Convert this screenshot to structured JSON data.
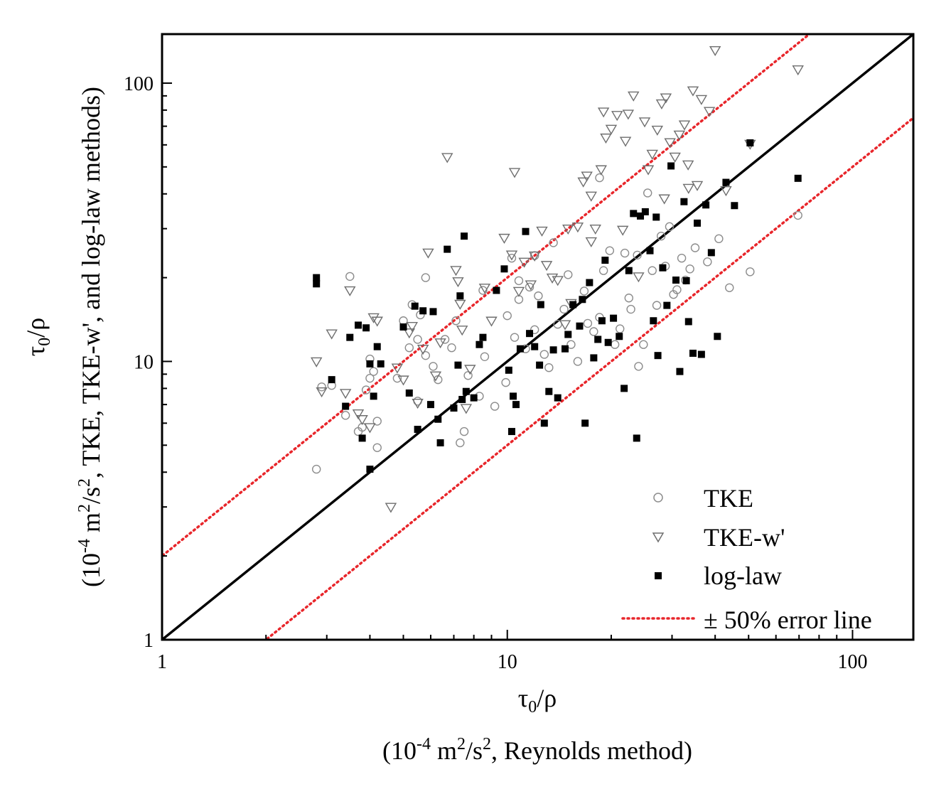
{
  "chart_data": {
    "type": "scatter",
    "scale": "log-log",
    "xlim": [
      1,
      150
    ],
    "ylim": [
      1,
      150
    ],
    "x_ticks": [
      {
        "value": 1,
        "label": "1"
      },
      {
        "value": 10,
        "label": "10"
      },
      {
        "value": 100,
        "label": "100"
      }
    ],
    "y_ticks": [
      {
        "value": 1,
        "label": "1"
      },
      {
        "value": 10,
        "label": "10"
      },
      {
        "value": 100,
        "label": "100"
      }
    ],
    "xlabel": {
      "main": "τ0/ρ",
      "main_symbol": "τ",
      "main_sub": "0",
      "main_rest": "/ρ",
      "units_prefix": "(10",
      "units_exp1": "-4",
      "units_mid": " m",
      "units_exp2": "2",
      "units_rest": "/s",
      "units_exp3": "2",
      "units_tail": ", Reynolds method)"
    },
    "ylabel": {
      "main_symbol": "τ",
      "main_sub": "0",
      "main_rest": "/ρ",
      "units_prefix": "(10",
      "units_exp1": "-4",
      "units_mid": " m",
      "units_exp2": "2",
      "units_rest": "/s",
      "units_exp3": "2",
      "units_tail": ", TKE, TKE-w', and log-law methods)"
    },
    "reference_lines": [
      {
        "name": "1:1 line",
        "slope_factor": 1.0,
        "color": "#000000",
        "style": "solid"
      },
      {
        "name": "± 50% error line",
        "slope_factor": 2.0,
        "color": "#e8262b",
        "style": "dotted"
      },
      {
        "name": "± 50% error line",
        "slope_factor": 0.5,
        "color": "#e8262b",
        "style": "dotted"
      }
    ],
    "legend": {
      "position": "bottom-right",
      "entries": [
        {
          "label": "TKE",
          "marker": "open-circle"
        },
        {
          "label": "TKE-w'",
          "marker": "open-triangle-down"
        },
        {
          "label": "log-law",
          "marker": "filled-square"
        },
        {
          "label": "± 50% error line",
          "marker": "red-dotted-line"
        }
      ]
    },
    "colors": {
      "tke": "#8c8c8c",
      "tke_w": "#6e6e6e",
      "loglaw": "#000000",
      "error_line": "#e8262b",
      "axis": "#000000"
    },
    "series": [
      {
        "name": "TKE",
        "marker": "open-circle",
        "points": [
          [
            2.8,
            4.1
          ],
          [
            2.9,
            8.1
          ],
          [
            3.1,
            8.2
          ],
          [
            3.4,
            6.4
          ],
          [
            3.5,
            20.2
          ],
          [
            3.7,
            5.6
          ],
          [
            3.8,
            5.8
          ],
          [
            3.9,
            7.9
          ],
          [
            4.0,
            8.7
          ],
          [
            4.0,
            10.2
          ],
          [
            4.1,
            9.2
          ],
          [
            4.2,
            4.9
          ],
          [
            4.2,
            6.1
          ],
          [
            4.8,
            8.7
          ],
          [
            5.0,
            14.0
          ],
          [
            5.2,
            11.2
          ],
          [
            5.3,
            16.0
          ],
          [
            5.5,
            12.0
          ],
          [
            5.5,
            7.2
          ],
          [
            5.6,
            14.7
          ],
          [
            5.8,
            20.0
          ],
          [
            5.8,
            10.5
          ],
          [
            6.1,
            9.6
          ],
          [
            6.3,
            8.6
          ],
          [
            6.6,
            12.0
          ],
          [
            6.9,
            11.2
          ],
          [
            7.1,
            14.0
          ],
          [
            7.3,
            5.1
          ],
          [
            7.5,
            5.6
          ],
          [
            7.7,
            8.9
          ],
          [
            8.3,
            7.5
          ],
          [
            8.6,
            10.4
          ],
          [
            9.2,
            6.9
          ],
          [
            9.9,
            8.4
          ],
          [
            10.0,
            14.6
          ],
          [
            10.3,
            23.5
          ],
          [
            10.5,
            12.2
          ],
          [
            10.8,
            16.7
          ],
          [
            11.3,
            11.1
          ],
          [
            11.6,
            18.5
          ],
          [
            12.0,
            13.0
          ],
          [
            12.3,
            17.2
          ],
          [
            12.8,
            10.6
          ],
          [
            13.2,
            9.5
          ],
          [
            13.6,
            26.7
          ],
          [
            14.0,
            13.6
          ],
          [
            14.6,
            15.4
          ],
          [
            15.3,
            11.5
          ],
          [
            16.0,
            10.0
          ],
          [
            16.7,
            17.9
          ],
          [
            17.1,
            13.7
          ],
          [
            17.8,
            12.8
          ],
          [
            18.5,
            14.4
          ],
          [
            19.0,
            21.2
          ],
          [
            19.8,
            25.0
          ],
          [
            20.5,
            11.5
          ],
          [
            21.2,
            13.1
          ],
          [
            21.9,
            24.5
          ],
          [
            22.5,
            16.9
          ],
          [
            22.8,
            15.4
          ],
          [
            23.8,
            24.1
          ],
          [
            24.0,
            9.6
          ],
          [
            24.8,
            11.5
          ],
          [
            25.5,
            40.3
          ],
          [
            26.3,
            21.2
          ],
          [
            27.1,
            15.9
          ],
          [
            27.9,
            28.2
          ],
          [
            28.7,
            22.0
          ],
          [
            29.5,
            30.5
          ],
          [
            30.3,
            17.4
          ],
          [
            31.0,
            18.1
          ],
          [
            32.0,
            23.5
          ],
          [
            32.8,
            19.6
          ],
          [
            33.8,
            21.5
          ],
          [
            35.0,
            25.6
          ],
          [
            38.0,
            22.8
          ],
          [
            41.0,
            27.6
          ],
          [
            44.0,
            18.4
          ],
          [
            50.5,
            21.0
          ],
          [
            69.5,
            33.5
          ],
          [
            18.5,
            45.7
          ],
          [
            12.0,
            24.0
          ],
          [
            15.0,
            20.5
          ],
          [
            8.5,
            18.0
          ],
          [
            10.8,
            19.5
          ]
        ]
      },
      {
        "name": "TKE-w'",
        "marker": "open-triangle-down",
        "points": [
          [
            2.8,
            10.0
          ],
          [
            2.9,
            7.8
          ],
          [
            3.1,
            12.6
          ],
          [
            3.4,
            7.7
          ],
          [
            3.5,
            18.0
          ],
          [
            3.7,
            6.5
          ],
          [
            3.8,
            6.2
          ],
          [
            4.0,
            5.8
          ],
          [
            4.1,
            14.4
          ],
          [
            4.2,
            14.0
          ],
          [
            4.6,
            3.0
          ],
          [
            4.8,
            9.5
          ],
          [
            5.0,
            8.6
          ],
          [
            5.2,
            12.7
          ],
          [
            5.3,
            13.4
          ],
          [
            5.5,
            7.1
          ],
          [
            5.7,
            11.1
          ],
          [
            5.9,
            24.6
          ],
          [
            6.2,
            8.9
          ],
          [
            6.4,
            11.7
          ],
          [
            6.7,
            54.2
          ],
          [
            7.1,
            21.3
          ],
          [
            7.2,
            19.4
          ],
          [
            7.3,
            16.1
          ],
          [
            7.4,
            13.0
          ],
          [
            7.6,
            6.8
          ],
          [
            7.8,
            9.4
          ],
          [
            8.6,
            18.4
          ],
          [
            9.0,
            14.0
          ],
          [
            9.8,
            27.8
          ],
          [
            10.3,
            24.2
          ],
          [
            10.5,
            47.9
          ],
          [
            10.8,
            17.9
          ],
          [
            11.2,
            22.8
          ],
          [
            11.7,
            18.9
          ],
          [
            12.0,
            24.0
          ],
          [
            12.6,
            29.5
          ],
          [
            13.0,
            22.2
          ],
          [
            13.5,
            20.0
          ],
          [
            14.0,
            19.6
          ],
          [
            14.7,
            13.6
          ],
          [
            15.3,
            16.2
          ],
          [
            16.0,
            30.5
          ],
          [
            16.6,
            44.3
          ],
          [
            17.0,
            46.5
          ],
          [
            17.5,
            39.4
          ],
          [
            18.0,
            30.0
          ],
          [
            18.7,
            49.0
          ],
          [
            19.3,
            63.7
          ],
          [
            20.0,
            68.5
          ],
          [
            20.8,
            76.8
          ],
          [
            21.6,
            29.7
          ],
          [
            22.4,
            77.6
          ],
          [
            23.2,
            90.2
          ],
          [
            24.0,
            20.2
          ],
          [
            25.0,
            72.8
          ],
          [
            25.6,
            49.0
          ],
          [
            26.3,
            55.7
          ],
          [
            27.2,
            68.0
          ],
          [
            28.0,
            84.5
          ],
          [
            28.8,
            88.8
          ],
          [
            29.6,
            61.3
          ],
          [
            30.6,
            54.4
          ],
          [
            31.5,
            65.3
          ],
          [
            32.6,
            71.0
          ],
          [
            33.4,
            51.0
          ],
          [
            34.5,
            94.1
          ],
          [
            35.5,
            43.0
          ],
          [
            36.5,
            87.6
          ],
          [
            38.5,
            79.4
          ],
          [
            40.0,
            131.3
          ],
          [
            43.0,
            41.2
          ],
          [
            50.5,
            60.5
          ],
          [
            69.5,
            112.0
          ],
          [
            19.0,
            79.0
          ],
          [
            15.0,
            30.0
          ],
          [
            22.0,
            62.0
          ],
          [
            33.5,
            42.0
          ],
          [
            28.5,
            38.5
          ],
          [
            17.5,
            27.0
          ]
        ]
      },
      {
        "name": "log-law",
        "marker": "filled-square",
        "points": [
          [
            2.8,
            20.0
          ],
          [
            2.8,
            19.0
          ],
          [
            3.1,
            8.6
          ],
          [
            3.4,
            6.9
          ],
          [
            3.5,
            12.2
          ],
          [
            3.7,
            13.5
          ],
          [
            3.8,
            5.3
          ],
          [
            3.9,
            13.2
          ],
          [
            4.0,
            9.8
          ],
          [
            4.0,
            4.1
          ],
          [
            4.1,
            7.5
          ],
          [
            4.2,
            11.3
          ],
          [
            4.3,
            9.8
          ],
          [
            5.0,
            13.3
          ],
          [
            5.2,
            7.7
          ],
          [
            5.4,
            15.8
          ],
          [
            5.5,
            5.7
          ],
          [
            5.7,
            15.2
          ],
          [
            6.0,
            7.0
          ],
          [
            6.1,
            15.1
          ],
          [
            6.3,
            6.2
          ],
          [
            6.4,
            5.1
          ],
          [
            6.7,
            25.3
          ],
          [
            7.0,
            6.8
          ],
          [
            7.2,
            9.7
          ],
          [
            7.3,
            17.2
          ],
          [
            7.5,
            28.2
          ],
          [
            7.4,
            7.3
          ],
          [
            7.6,
            7.8
          ],
          [
            8.3,
            11.5
          ],
          [
            8.5,
            12.2
          ],
          [
            9.3,
            18.0
          ],
          [
            9.8,
            21.5
          ],
          [
            10.1,
            9.3
          ],
          [
            10.3,
            5.6
          ],
          [
            10.4,
            7.5
          ],
          [
            10.6,
            7.0
          ],
          [
            10.9,
            11.1
          ],
          [
            11.3,
            29.3
          ],
          [
            11.6,
            12.6
          ],
          [
            12.0,
            11.3
          ],
          [
            12.4,
            9.7
          ],
          [
            12.8,
            6.0
          ],
          [
            13.2,
            7.8
          ],
          [
            13.6,
            11.0
          ],
          [
            14.0,
            7.4
          ],
          [
            14.7,
            11.1
          ],
          [
            15.5,
            16.0
          ],
          [
            16.2,
            13.4
          ],
          [
            16.8,
            6.0
          ],
          [
            17.3,
            19.2
          ],
          [
            17.8,
            10.3
          ],
          [
            18.3,
            12.0
          ],
          [
            18.8,
            14.0
          ],
          [
            19.2,
            23.1
          ],
          [
            19.6,
            11.7
          ],
          [
            20.3,
            14.3
          ],
          [
            21.1,
            12.3
          ],
          [
            21.8,
            8.0
          ],
          [
            22.5,
            21.2
          ],
          [
            23.2,
            34.0
          ],
          [
            23.7,
            5.3
          ],
          [
            24.3,
            33.3
          ],
          [
            25.1,
            34.5
          ],
          [
            25.9,
            25.0
          ],
          [
            26.5,
            14.0
          ],
          [
            27.3,
            10.5
          ],
          [
            28.2,
            21.7
          ],
          [
            29.0,
            15.9
          ],
          [
            29.8,
            50.4
          ],
          [
            30.8,
            19.6
          ],
          [
            31.6,
            9.2
          ],
          [
            32.5,
            37.5
          ],
          [
            33.5,
            13.9
          ],
          [
            34.5,
            10.7
          ],
          [
            35.5,
            31.4
          ],
          [
            36.5,
            10.6
          ],
          [
            37.6,
            36.5
          ],
          [
            39.0,
            24.6
          ],
          [
            40.6,
            12.3
          ],
          [
            43.0,
            44.0
          ],
          [
            45.5,
            36.3
          ],
          [
            50.5,
            61.0
          ],
          [
            69.5,
            45.5
          ],
          [
            16.5,
            16.7
          ],
          [
            8.0,
            7.4
          ],
          [
            12.5,
            16.0
          ],
          [
            27.0,
            33.0
          ],
          [
            15.0,
            12.5
          ],
          [
            33.0,
            19.5
          ]
        ]
      }
    ]
  }
}
